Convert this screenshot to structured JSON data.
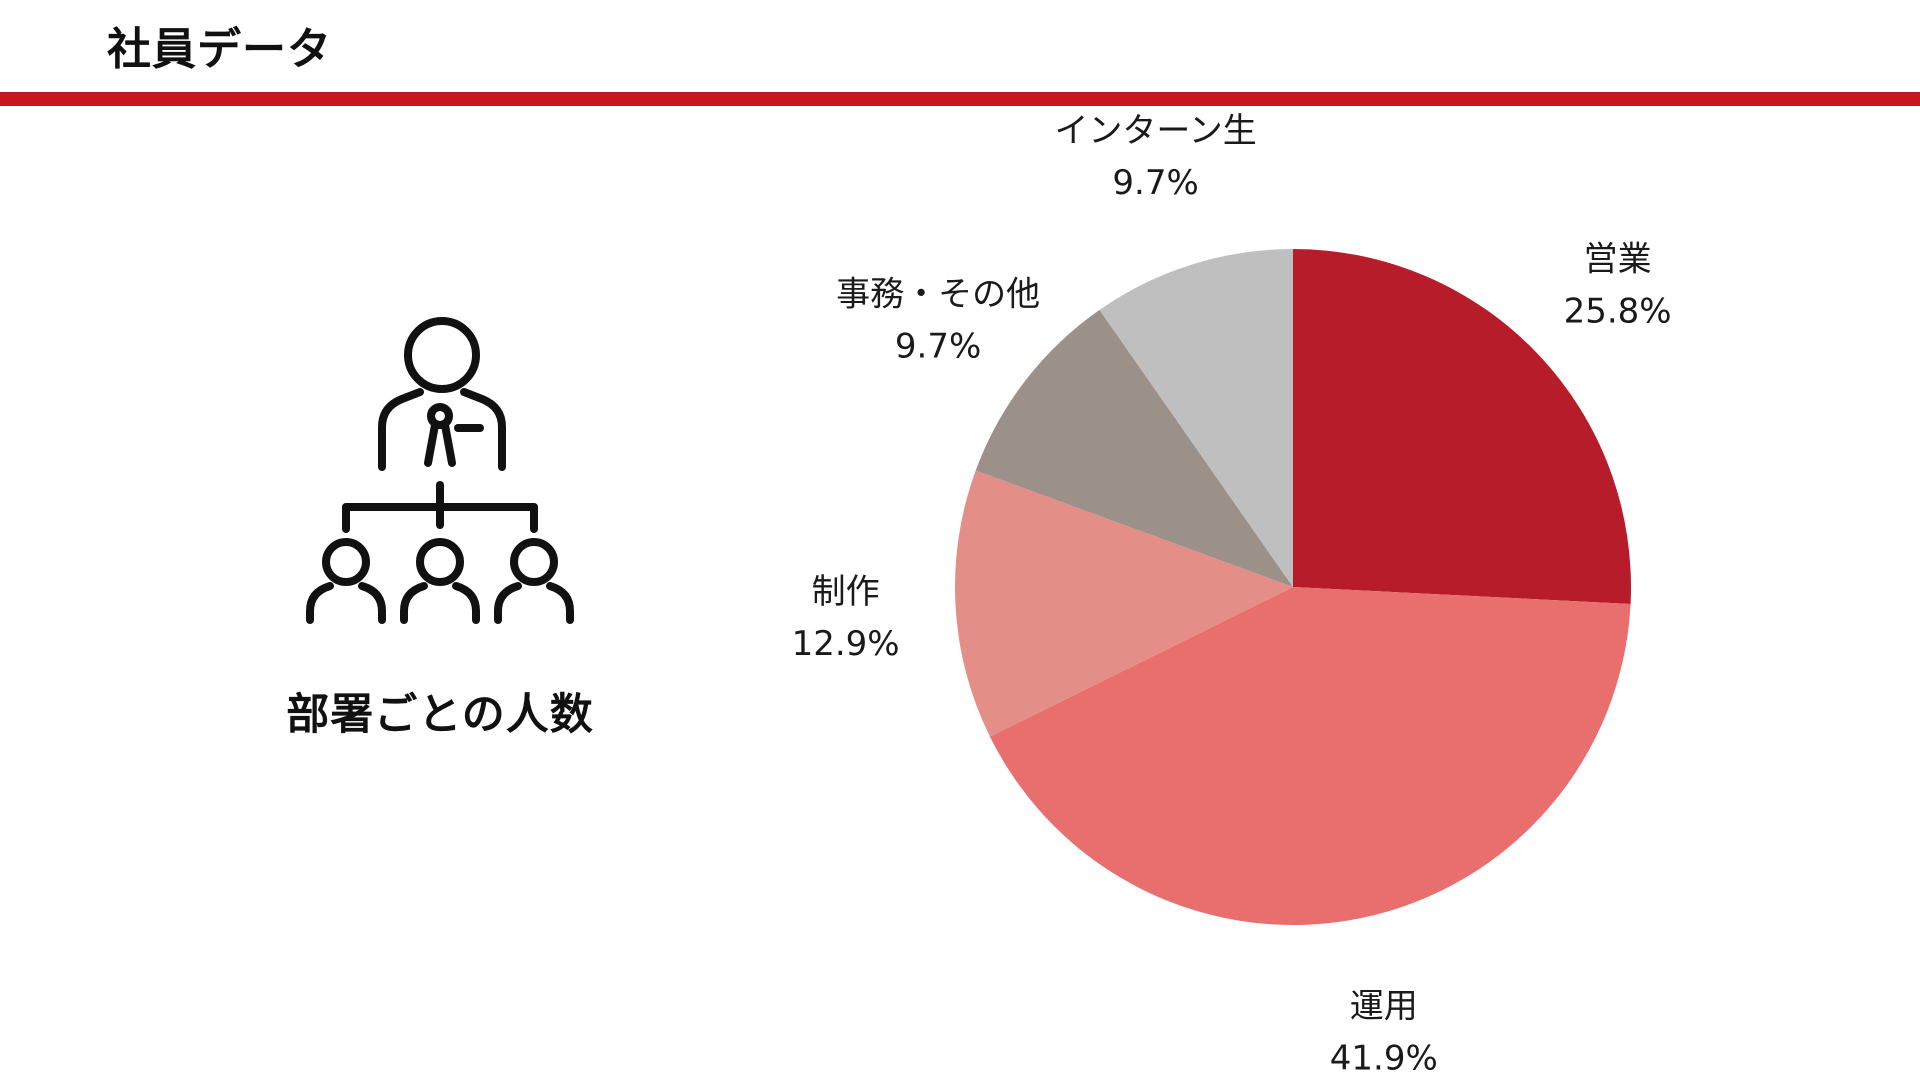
{
  "header": {
    "title": "社員データ",
    "rule_color": "#c8161e"
  },
  "left_panel": {
    "icon": "organization-hierarchy-icon",
    "caption": "部署ごとの人数"
  },
  "chart_data": {
    "type": "pie",
    "title": "",
    "slices": [
      {
        "label": "営業",
        "value": 25.8,
        "display": "25.8%",
        "color": "#b71c2a"
      },
      {
        "label": "運用",
        "value": 41.9,
        "display": "41.9%",
        "color": "#e96e6e"
      },
      {
        "label": "制作",
        "value": 12.9,
        "display": "12.9%",
        "color": "#e38f87"
      },
      {
        "label": "事務・その他",
        "value": 9.7,
        "display": "9.7%",
        "color": "#9c9189"
      },
      {
        "label": "インターン生",
        "value": 9.7,
        "display": "9.7%",
        "color": "#bfbfbf"
      }
    ],
    "start_angle": "12 o'clock",
    "direction": "clockwise",
    "legend": "none",
    "labels": "outside"
  }
}
